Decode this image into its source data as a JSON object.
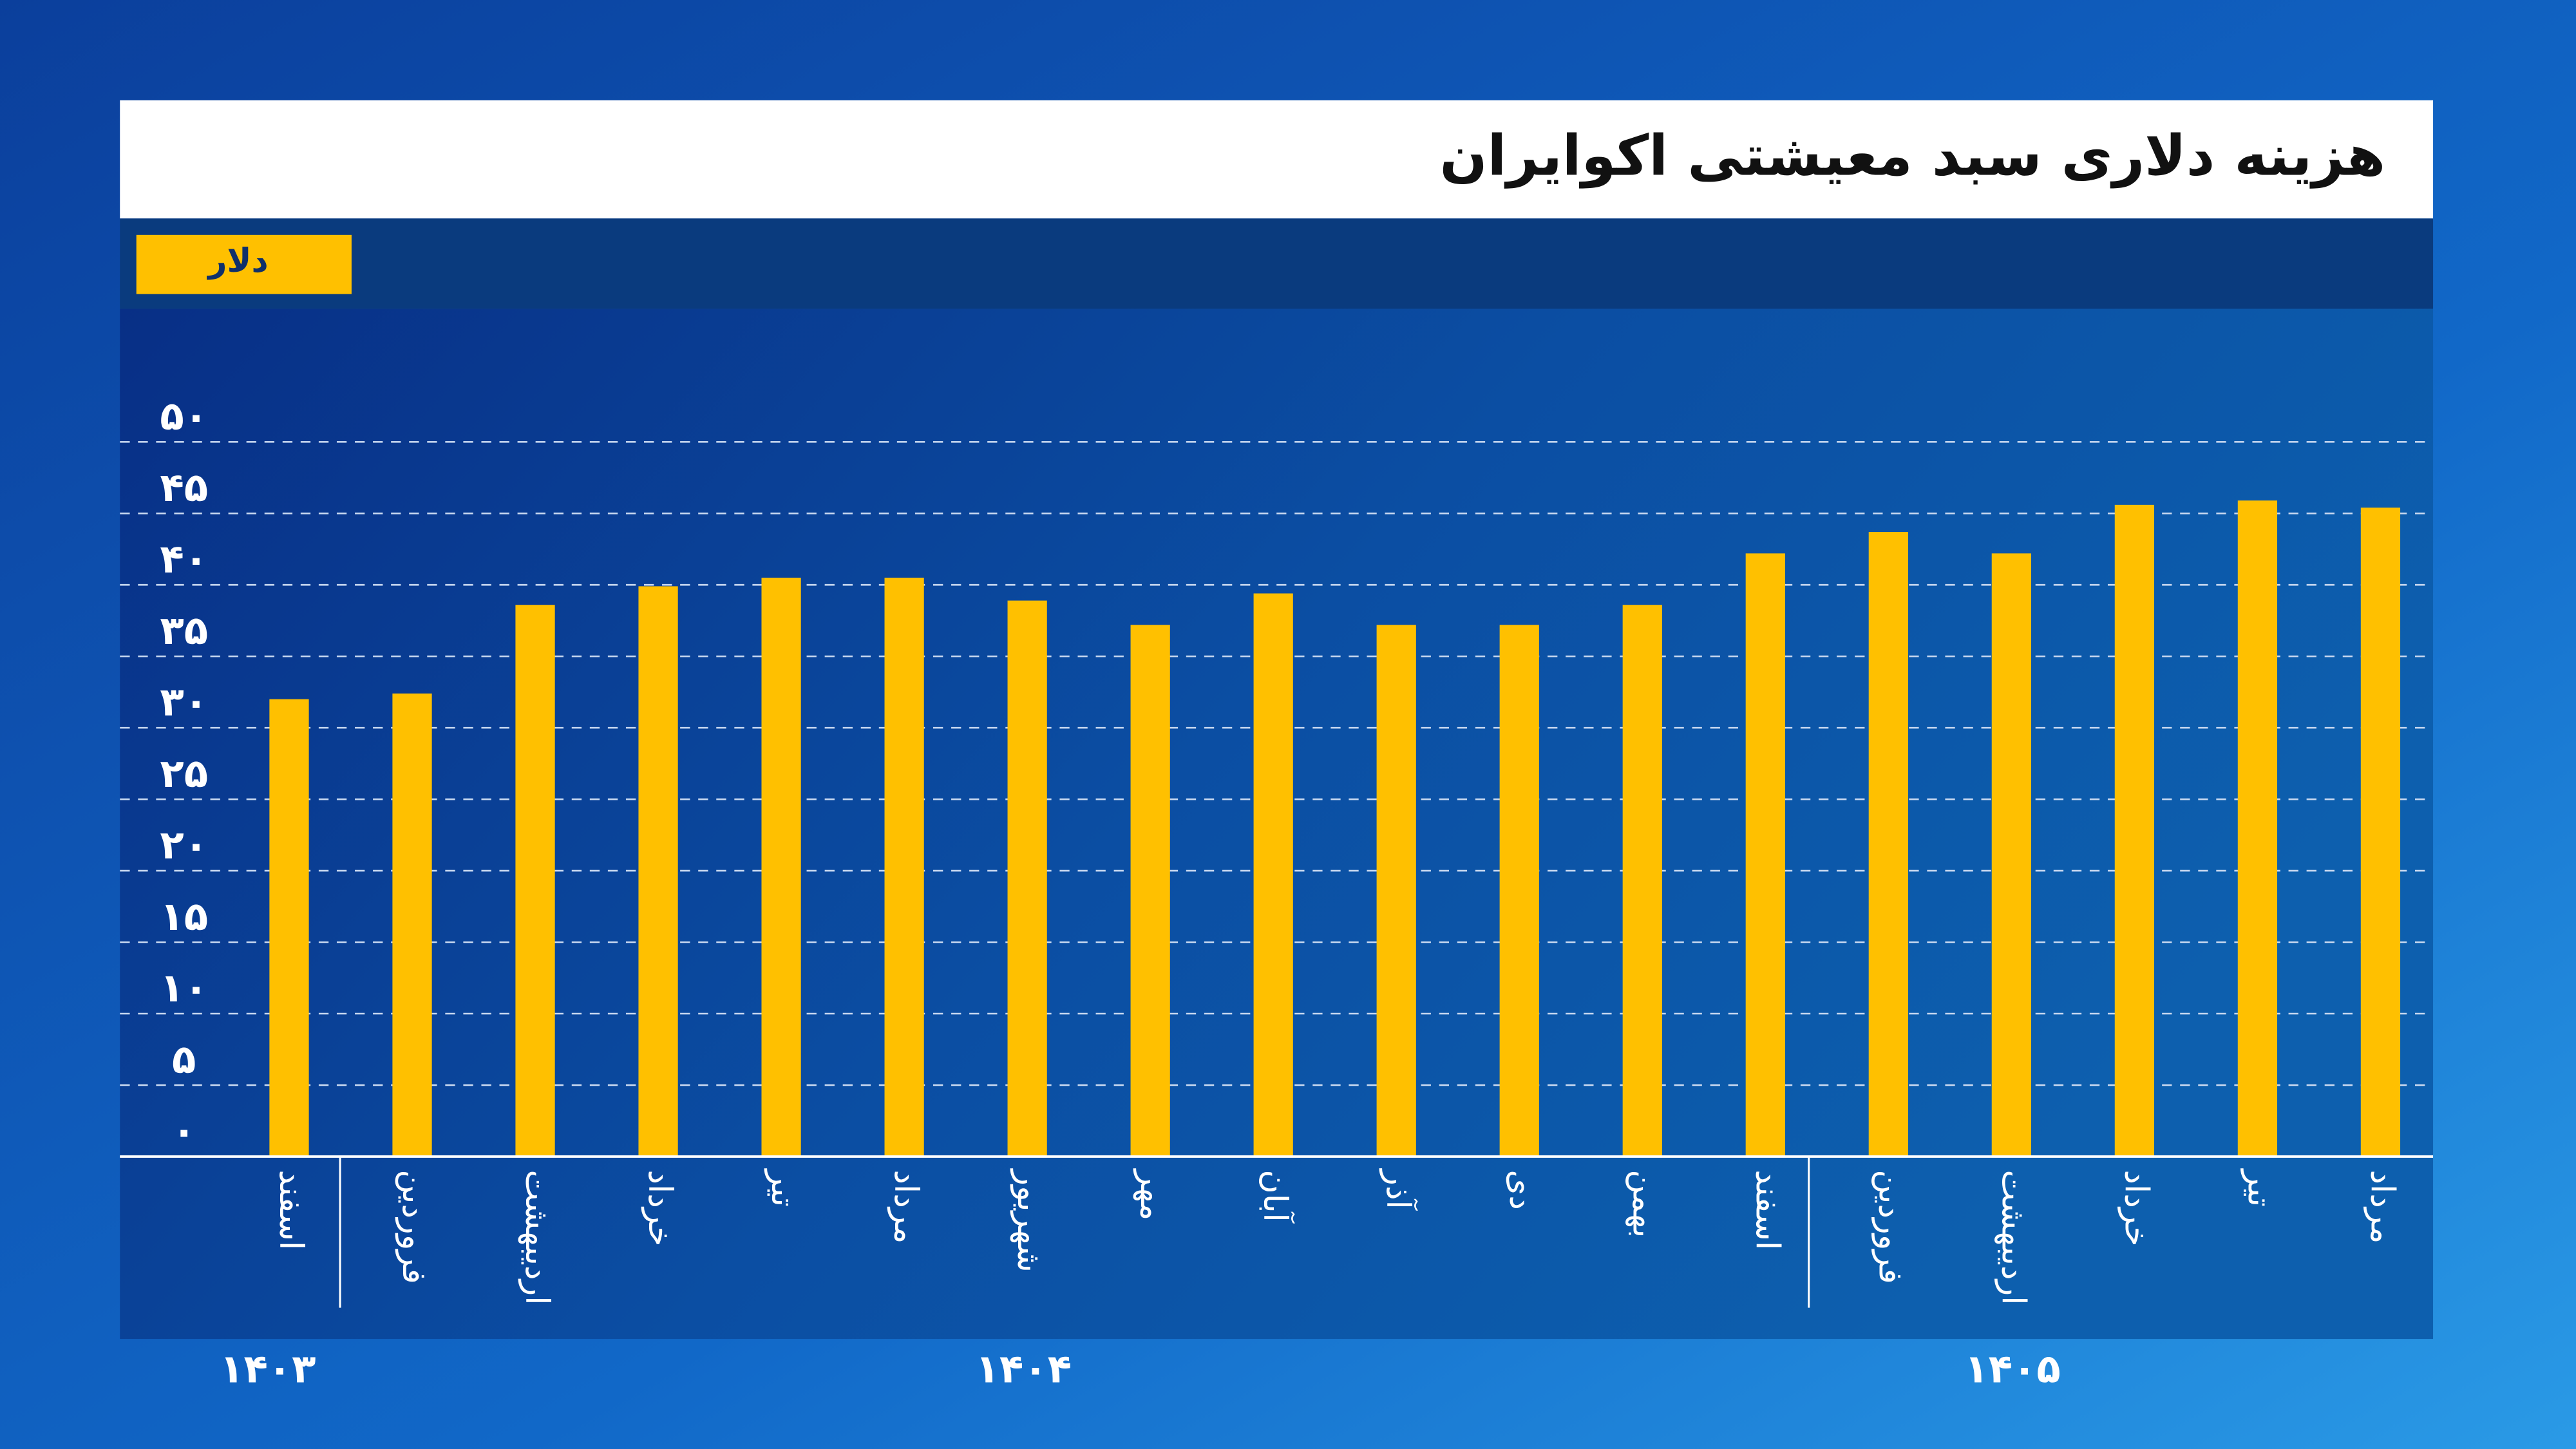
{
  "chart_data": {
    "type": "bar",
    "title": "هزینه دلاری سبد معیشتی اکوایران",
    "unit_label": "دلار",
    "categories": [
      "اسفند",
      "فروردین",
      "اردیبهشت",
      "خرداد",
      "تیر",
      "مرداد",
      "شهریور",
      "مهر",
      "آبان",
      "آذر",
      "دی",
      "بهمن",
      "اسفند",
      "فروردین",
      "اردیبهشت",
      "خرداد",
      "تیر",
      "مرداد"
    ],
    "values": [
      32,
      32.4,
      38.6,
      39.9,
      40.5,
      40.5,
      38.9,
      37.2,
      39.4,
      37.2,
      37.2,
      38.6,
      42.2,
      43.7,
      42.2,
      45.6,
      45.9,
      45.4
    ],
    "x_groups": [
      "۱۴۰۳",
      "۱۴۰۴",
      "۱۴۰۵"
    ],
    "color": "#ffc000",
    "ylim": [
      0,
      50
    ],
    "yticks": [
      {
        "value": 0,
        "label": "۰"
      },
      {
        "value": 5,
        "label": "۵"
      },
      {
        "value": 10,
        "label": "۱۰"
      },
      {
        "value": 15,
        "label": "۱۵"
      },
      {
        "value": 20,
        "label": "۲۰"
      },
      {
        "value": 25,
        "label": "۲۵"
      },
      {
        "value": 30,
        "label": "۳۰"
      },
      {
        "value": 35,
        "label": "۳۵"
      },
      {
        "value": 40,
        "label": "۴۰"
      },
      {
        "value": 45,
        "label": "۴۵"
      },
      {
        "value": 50,
        "label": "۵۰"
      }
    ],
    "grid": true
  }
}
